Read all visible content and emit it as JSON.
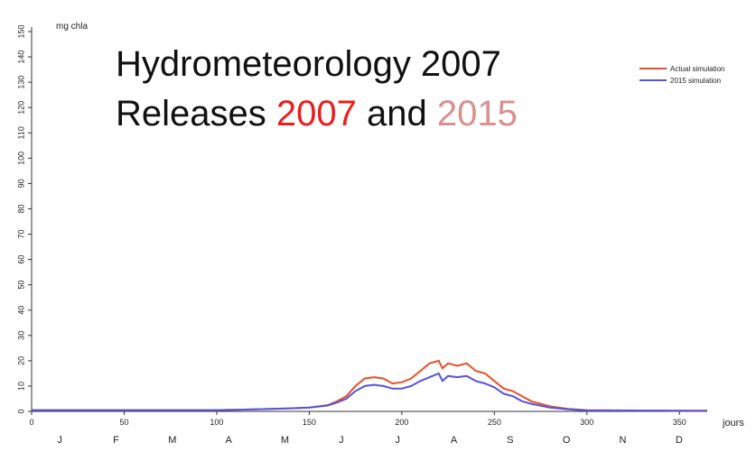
{
  "chart_data": {
    "type": "line",
    "y_label": "mg chla",
    "x_label": "jours",
    "annotation": {
      "line1": "Hydrometeorology 2007",
      "line2": [
        {
          "text": "Releases ",
          "color": "#111111"
        },
        {
          "text": "2007",
          "color": "#ee1c1c"
        },
        {
          "text": " and ",
          "color": "#111111"
        },
        {
          "text": "2015",
          "color": "#d9908e"
        }
      ]
    },
    "month_labels": [
      "J",
      "F",
      "M",
      "A",
      "M",
      "J",
      "J",
      "A",
      "S",
      "O",
      "N",
      "D"
    ],
    "x": [
      0,
      50,
      100,
      120,
      140,
      150,
      160,
      165,
      170,
      175,
      180,
      185,
      190,
      195,
      200,
      205,
      210,
      215,
      220,
      222,
      225,
      230,
      235,
      240,
      245,
      250,
      255,
      260,
      265,
      270,
      280,
      290,
      300,
      350,
      365
    ],
    "series": [
      {
        "name": "Actual simulation",
        "color": "#e8502a",
        "values": [
          0.5,
          0.5,
          0.5,
          0.8,
          1.2,
          1.5,
          2.5,
          4,
          6,
          10,
          13,
          13.5,
          13,
          11,
          11.5,
          13,
          16,
          19,
          20,
          17,
          19,
          18,
          19,
          16,
          15,
          12,
          9,
          8,
          6,
          4,
          2,
          1,
          0.5,
          0.3,
          0.3
        ]
      },
      {
        "name": "2015 simulation",
        "color": "#5555dd",
        "values": [
          0.5,
          0.5,
          0.5,
          0.8,
          1.2,
          1.5,
          2.3,
          3.5,
          5,
          8,
          10,
          10.5,
          10,
          9,
          9,
          10,
          12,
          13.5,
          15,
          12,
          14,
          13.5,
          14,
          12,
          11,
          9.5,
          7,
          6,
          4,
          3,
          1.5,
          0.8,
          0.4,
          0.3,
          0.3
        ]
      }
    ],
    "xlim": [
      0,
      365
    ],
    "xticks": [
      0,
      50,
      100,
      150,
      200,
      250,
      300,
      350
    ],
    "ylim": [
      0,
      150
    ],
    "yticks": [
      0,
      10,
      20,
      30,
      40,
      50,
      60,
      70,
      80,
      90,
      100,
      110,
      120,
      130,
      140,
      150
    ],
    "legend": "upper right"
  }
}
